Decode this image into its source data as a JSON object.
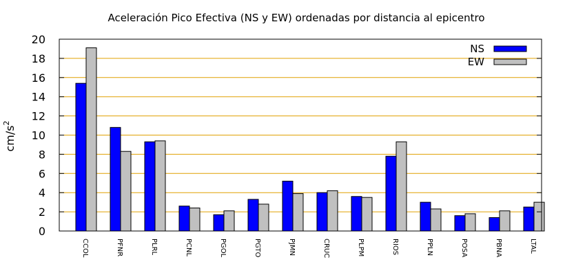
{
  "chart_data": {
    "type": "bar",
    "title": "Aceleración Pico Efectiva (NS y EW) ordenadas por distancia al epicentro",
    "ylabel": "cm/s",
    "ylabel_sup": "2",
    "xlabel": "",
    "ylim": [
      0,
      20
    ],
    "yticks": [
      0,
      2,
      4,
      6,
      8,
      10,
      12,
      14,
      16,
      18,
      20
    ],
    "grid": "horizontal",
    "legend_position": "top-right",
    "categories": [
      "CCOL",
      "PFNR",
      "PLRL",
      "PCNL",
      "PGOL",
      "PGTO",
      "PJMN",
      "CRUC",
      "PLPM",
      "RIOS",
      "PPLN",
      "POSA",
      "PBNA",
      "LTAL"
    ],
    "series": [
      {
        "name": "NS",
        "color": "#0000ff",
        "values": [
          15.4,
          10.8,
          9.3,
          2.6,
          1.7,
          3.3,
          5.2,
          4.0,
          3.6,
          7.8,
          3.0,
          1.6,
          1.4,
          2.5
        ]
      },
      {
        "name": "EW",
        "color": "#c0c0c0",
        "values": [
          19.1,
          8.3,
          9.4,
          2.4,
          2.1,
          2.8,
          3.9,
          4.2,
          3.5,
          9.3,
          2.3,
          1.8,
          2.1,
          3.0
        ]
      }
    ],
    "grid_color": "#e0a000"
  }
}
